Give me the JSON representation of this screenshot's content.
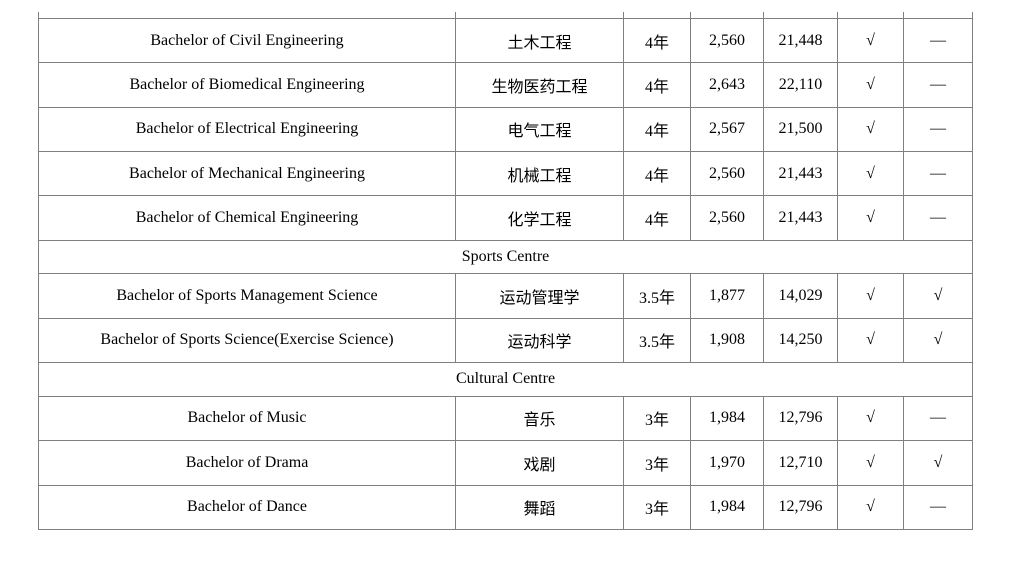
{
  "table": {
    "border_color": "#808080",
    "text_color": "#000000",
    "columns": [
      "name_en",
      "name_zh",
      "duration",
      "value1",
      "value2",
      "mark1",
      "mark2"
    ],
    "sections": [
      {
        "header": null,
        "rows": [
          {
            "name_en": "Bachelor of Civil Engineering",
            "name_zh": "土木工程",
            "duration": "4年",
            "value1": "2,560",
            "value2": "21,448",
            "mark1": "√",
            "mark2": "—"
          },
          {
            "name_en": "Bachelor of Biomedical Engineering",
            "name_zh": "生物医药工程",
            "duration": "4年",
            "value1": "2,643",
            "value2": "22,110",
            "mark1": "√",
            "mark2": "—"
          },
          {
            "name_en": "Bachelor of Electrical Engineering",
            "name_zh": "电气工程",
            "duration": "4年",
            "value1": "2,567",
            "value2": "21,500",
            "mark1": "√",
            "mark2": "—"
          },
          {
            "name_en": "Bachelor of Mechanical Engineering",
            "name_zh": "机械工程",
            "duration": "4年",
            "value1": "2,560",
            "value2": "21,443",
            "mark1": "√",
            "mark2": "—"
          },
          {
            "name_en": "Bachelor of Chemical Engineering",
            "name_zh": "化学工程",
            "duration": "4年",
            "value1": "2,560",
            "value2": "21,443",
            "mark1": "√",
            "mark2": "—"
          }
        ]
      },
      {
        "header": "Sports Centre",
        "rows": [
          {
            "name_en": "Bachelor of Sports Management Science",
            "name_zh": "运动管理学",
            "duration": "3.5年",
            "value1": "1,877",
            "value2": "14,029",
            "mark1": "√",
            "mark2": "√"
          },
          {
            "name_en": "Bachelor of Sports Science(Exercise Science)",
            "name_zh": "运动科学",
            "duration": "3.5年",
            "value1": "1,908",
            "value2": "14,250",
            "mark1": "√",
            "mark2": "√"
          }
        ]
      },
      {
        "header": "Cultural Centre",
        "rows": [
          {
            "name_en": "Bachelor of Music",
            "name_zh": "音乐",
            "duration": "3年",
            "value1": "1,984",
            "value2": "12,796",
            "mark1": "√",
            "mark2": "—"
          },
          {
            "name_en": "Bachelor of Drama",
            "name_zh": "戏剧",
            "duration": "3年",
            "value1": "1,970",
            "value2": "12,710",
            "mark1": "√",
            "mark2": "√"
          },
          {
            "name_en": "Bachelor of Dance",
            "name_zh": "舞蹈",
            "duration": "3年",
            "value1": "1,984",
            "value2": "12,796",
            "mark1": "√",
            "mark2": "—"
          }
        ]
      }
    ]
  }
}
